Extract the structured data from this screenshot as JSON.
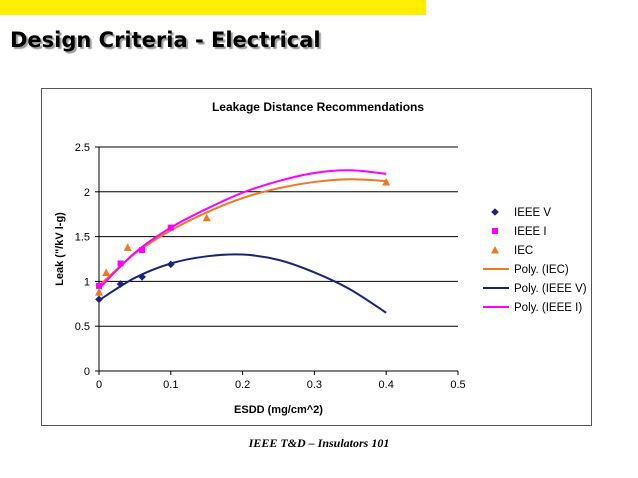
{
  "slide": {
    "title": "Design Criteria - Electrical",
    "footer": "IEEE T&D – Insulators 101",
    "accent_color": "#ffee00"
  },
  "chart_data": {
    "type": "scatter",
    "title": "Leakage Distance Recommendations",
    "xlabel": "ESDD (mg/cm^2)",
    "ylabel": "Leak (\"/kV l-g)",
    "xlim": [
      0,
      0.5
    ],
    "ylim": [
      0,
      2.5
    ],
    "xticks": [
      0,
      0.1,
      0.2,
      0.3,
      0.4,
      0.5
    ],
    "yticks": [
      0,
      0.5,
      1,
      1.5,
      2,
      2.5
    ],
    "xtick_labels": [
      "0",
      "0.1",
      "0.2",
      "0.3",
      "0.4",
      "0.5"
    ],
    "ytick_labels": [
      "0",
      "0.5",
      "1",
      "1.5",
      "2",
      "2.5"
    ],
    "grid": "horizontal",
    "legend_position": "right",
    "series": [
      {
        "name": "IEEE V",
        "kind": "points",
        "marker": "diamond",
        "color": "#1a237e",
        "x": [
          0.0,
          0.03,
          0.06,
          0.1
        ],
        "y": [
          0.8,
          0.97,
          1.05,
          1.19
        ]
      },
      {
        "name": "IEEE I",
        "kind": "points",
        "marker": "square",
        "color": "#ff00ff",
        "x": [
          0.0,
          0.03,
          0.06,
          0.1
        ],
        "y": [
          0.95,
          1.2,
          1.35,
          1.6
        ]
      },
      {
        "name": "IEC",
        "kind": "points",
        "marker": "triangle",
        "color": "#f07820",
        "x": [
          0.0,
          0.01,
          0.04,
          0.15,
          0.4
        ],
        "y": [
          0.88,
          1.1,
          1.38,
          1.71,
          2.11
        ]
      },
      {
        "name": "Poly. (IEC)",
        "kind": "line",
        "color": "#f07820",
        "x": [
          0,
          0.05,
          0.1,
          0.15,
          0.2,
          0.25,
          0.3,
          0.35,
          0.4
        ],
        "y": [
          0.95,
          1.31,
          1.57,
          1.77,
          1.93,
          2.04,
          2.11,
          2.14,
          2.12
        ]
      },
      {
        "name": "Poly. (IEEE V)",
        "kind": "line",
        "color": "#1a237e",
        "x": [
          0,
          0.05,
          0.1,
          0.15,
          0.2,
          0.25,
          0.3,
          0.35,
          0.4
        ],
        "y": [
          0.79,
          1.04,
          1.2,
          1.28,
          1.3,
          1.24,
          1.1,
          0.91,
          0.65
        ]
      },
      {
        "name": "Poly. (IEEE I)",
        "kind": "line",
        "color": "#ff00ff",
        "x": [
          0,
          0.05,
          0.1,
          0.15,
          0.2,
          0.25,
          0.3,
          0.35,
          0.4
        ],
        "y": [
          0.92,
          1.32,
          1.6,
          1.81,
          1.99,
          2.12,
          2.21,
          2.24,
          2.2
        ]
      }
    ]
  }
}
